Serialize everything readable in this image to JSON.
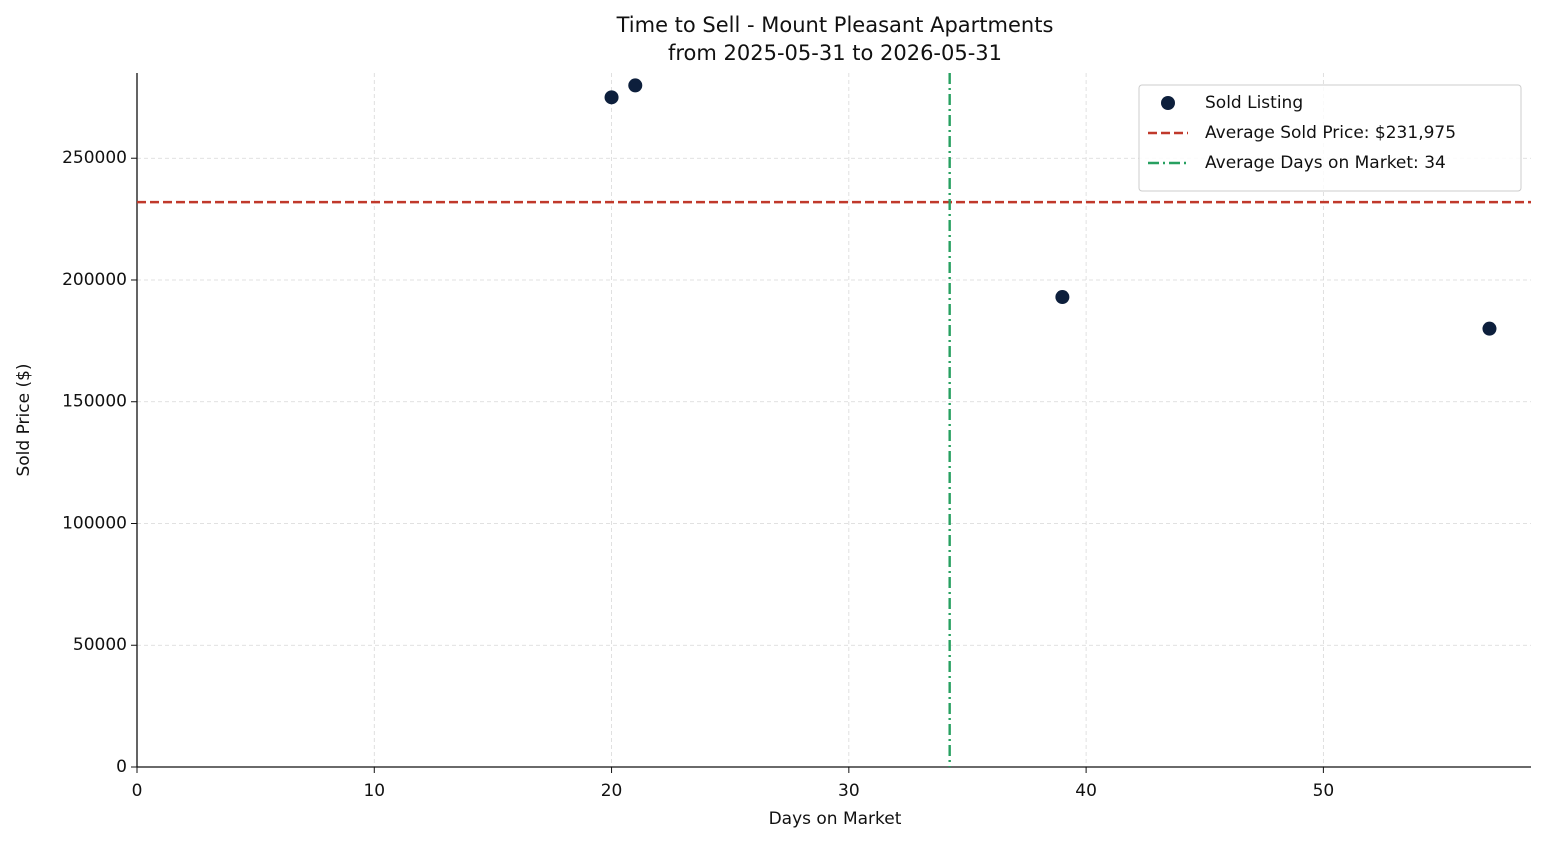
{
  "chart_data": {
    "type": "scatter",
    "title": "Time to Sell - Mount Pleasant Apartments",
    "subtitle": "from 2025-05-31 to 2026-05-31",
    "x_label": "Days on Market",
    "y_label": "Sold Price ($)",
    "series": [
      {
        "name": "Sold Listing",
        "color": "#0d1f3c",
        "x": [
          20,
          21,
          39,
          57
        ],
        "values": [
          275000,
          279900,
          193000,
          180000
        ]
      }
    ],
    "reference_lines": [
      {
        "name": "Average Sold Price: $231,975",
        "axis": "y",
        "value": 231975,
        "color": "#c0392b",
        "style": "dashed"
      },
      {
        "name": "Average Days on Market: 34",
        "axis": "x",
        "value": 34.25,
        "color": "#27a060",
        "style": "dashdot"
      }
    ],
    "xlim": [
      0,
      58.75
    ],
    "xticks": [
      0,
      10,
      20,
      30,
      40,
      50
    ],
    "ylim": [
      0,
      285000
    ],
    "yticks": [
      0,
      50000,
      100000,
      150000,
      200000,
      250000
    ],
    "grid": true,
    "legend": "upper-right"
  }
}
